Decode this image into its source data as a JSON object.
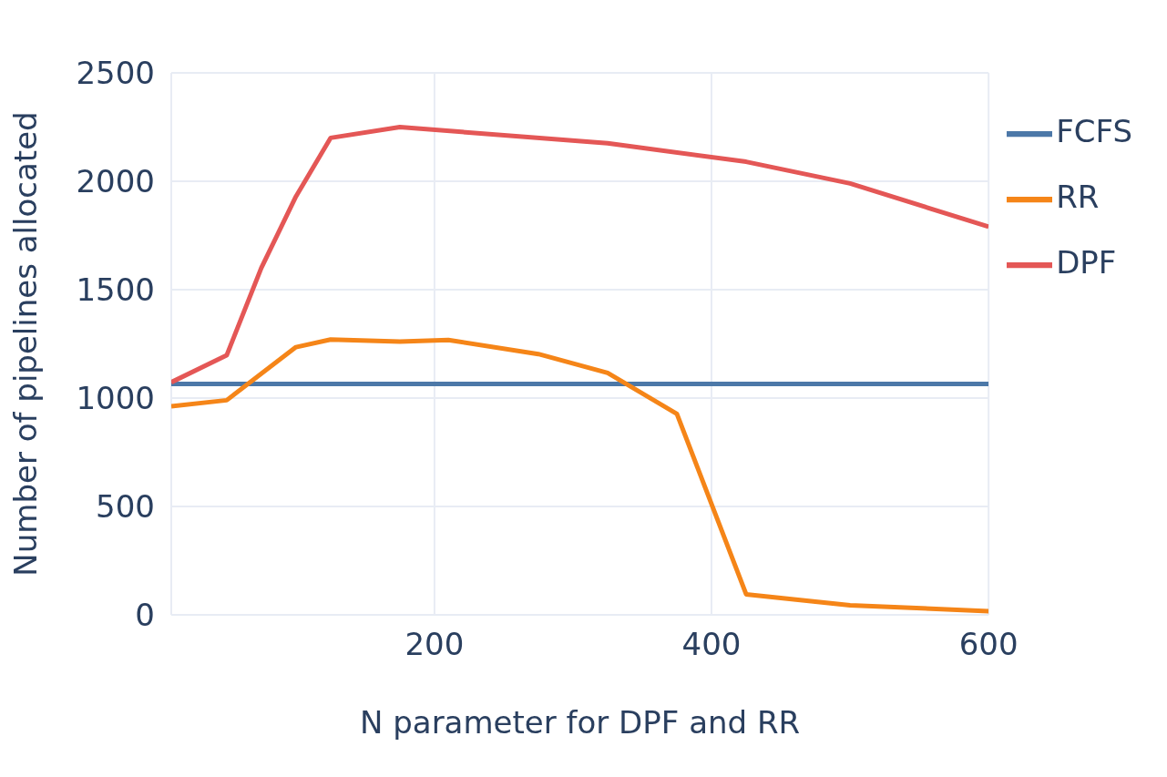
{
  "chart_data": {
    "type": "line",
    "xlabel": "N parameter for DPF and RR",
    "ylabel": "Number of pipelines allocated",
    "xlim": [
      10,
      600
    ],
    "xticks": [
      200,
      400,
      600
    ],
    "ylim": [
      0,
      2500
    ],
    "yticks": [
      0,
      500,
      1000,
      1500,
      2000,
      2500
    ],
    "grid": true,
    "legend": "top right",
    "line_style": "solid",
    "marker": "none",
    "series": [
      {
        "name": "FCFS",
        "color": "#4c78a8",
        "x": [
          10,
          600
        ],
        "values": [
          1065,
          1065
        ]
      },
      {
        "name": "RR",
        "color": "#f58518",
        "x": [
          10,
          50,
          100,
          125,
          175,
          210,
          275,
          325,
          375,
          425,
          500,
          600
        ],
        "values": [
          962,
          990,
          1235,
          1270,
          1260,
          1268,
          1203,
          1116,
          927,
          95,
          44,
          17
        ]
      },
      {
        "name": "DPF",
        "color": "#e45756",
        "x": [
          10,
          50,
          75,
          100,
          125,
          175,
          325,
          425,
          500,
          600
        ],
        "values": [
          1073,
          1197,
          1600,
          1930,
          2200,
          2250,
          2175,
          2090,
          1990,
          1790
        ]
      }
    ]
  }
}
